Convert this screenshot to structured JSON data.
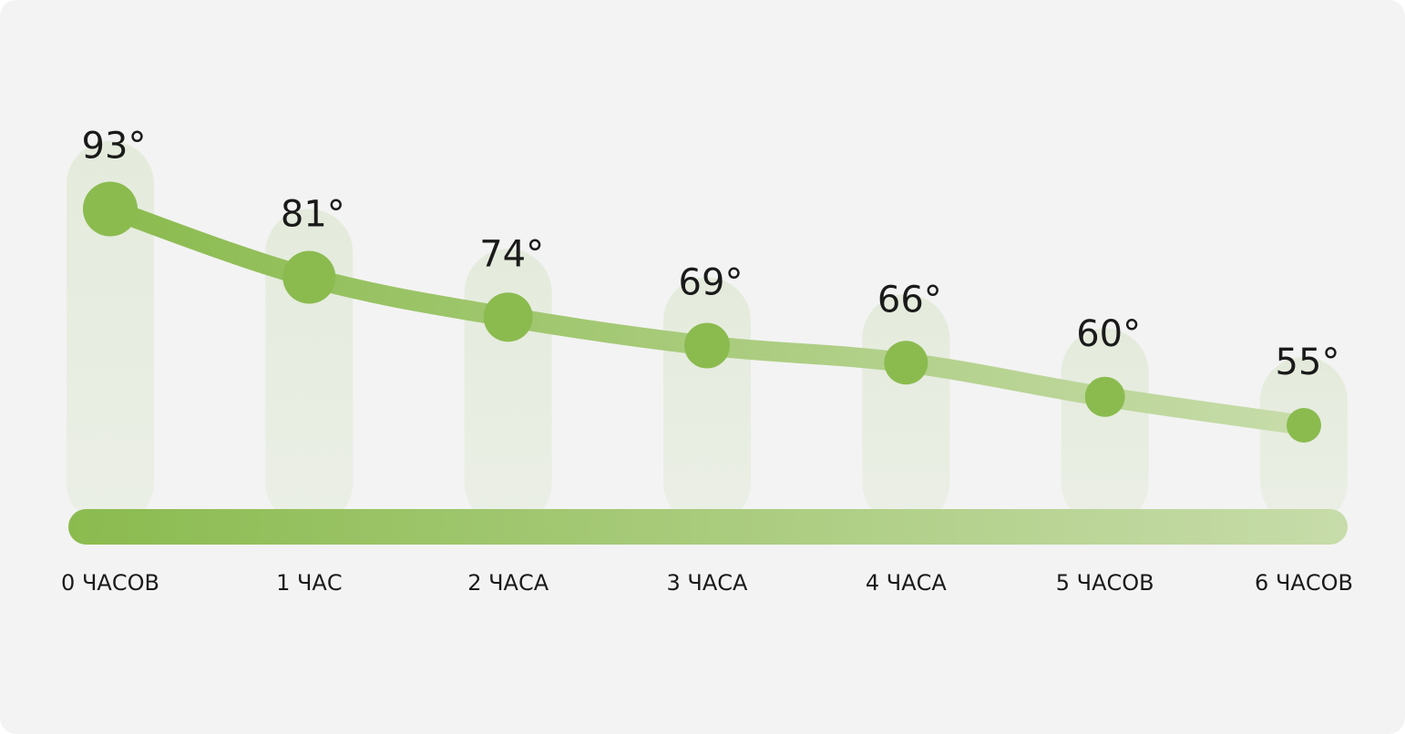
{
  "chart_data": {
    "type": "line",
    "categories": [
      "0 ЧАСОВ",
      "1 ЧАС",
      "2 ЧАСА",
      "3 ЧАСА",
      "4 ЧАСА",
      "5 ЧАСОВ",
      "6 ЧАСОВ"
    ],
    "values": [
      93,
      81,
      74,
      69,
      66,
      60,
      55
    ],
    "value_labels": [
      "93°",
      "81°",
      "74°",
      "69°",
      "66°",
      "60°",
      "55°"
    ],
    "unit": "°",
    "title": "",
    "xlabel": "",
    "ylabel": "",
    "grid": false,
    "legend": "none",
    "colors": {
      "line_start": "#8bbb4f",
      "line_end": "#c7dcaa",
      "marker": "#8bbb4f",
      "column": "#e6ecdf",
      "background": "#f3f3f3",
      "text": "#1a1a1a"
    }
  }
}
